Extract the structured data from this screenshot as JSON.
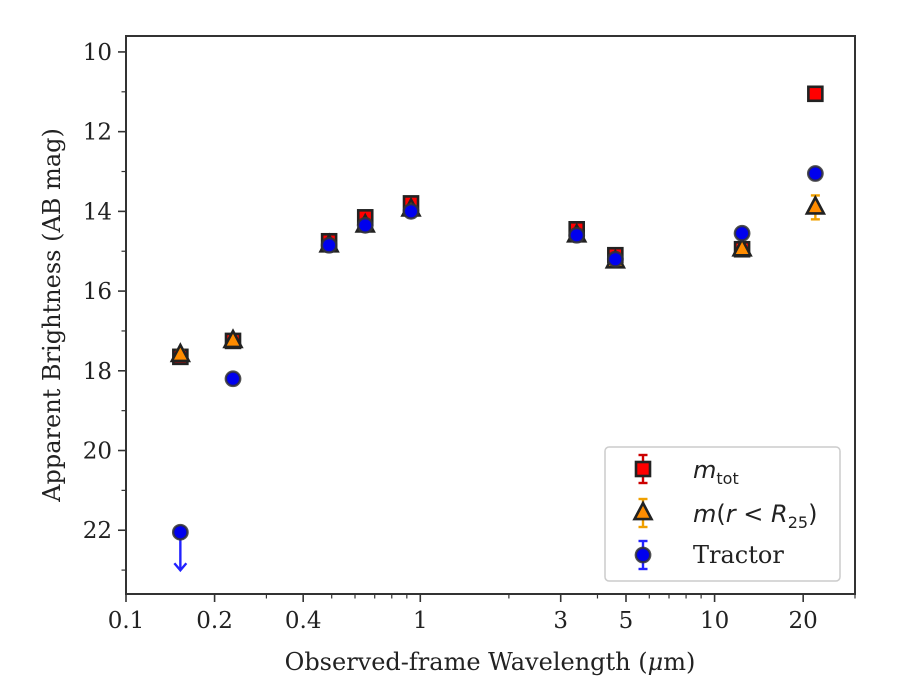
{
  "chart_data": {
    "type": "scatter",
    "xlabel_parts": [
      "Observed-frame Wavelength (",
      "μ",
      "m)"
    ],
    "ylabel": "Apparent Brightness (AB mag)",
    "x_scale": "log",
    "xlim": [
      0.1,
      30
    ],
    "ylim": [
      23.6,
      9.6
    ],
    "y_inverted": true,
    "grid": false,
    "legend_placement": "lower right",
    "x_ticks": [
      {
        "value": 0.1,
        "label": "0.1"
      },
      {
        "value": 0.2,
        "label": "0.2"
      },
      {
        "value": 0.4,
        "label": "0.4"
      },
      {
        "value": 1,
        "label": "1"
      },
      {
        "value": 3,
        "label": "3"
      },
      {
        "value": 5,
        "label": "5"
      },
      {
        "value": 10,
        "label": "10"
      },
      {
        "value": 20,
        "label": "20"
      }
    ],
    "x_minor_ticks": [
      0.3,
      0.5,
      0.6,
      0.7,
      0.8,
      0.9,
      2,
      4,
      6,
      7,
      8,
      9,
      30
    ],
    "y_ticks": [
      {
        "value": 10,
        "label": "10"
      },
      {
        "value": 12,
        "label": "12"
      },
      {
        "value": 14,
        "label": "14"
      },
      {
        "value": 16,
        "label": "16"
      },
      {
        "value": 18,
        "label": "18"
      },
      {
        "value": 20,
        "label": "20"
      },
      {
        "value": 22,
        "label": "22"
      }
    ],
    "y_minor_ticks": [
      11,
      13,
      15,
      17,
      19,
      21,
      23
    ],
    "series": [
      {
        "key": "mtot",
        "legend_label": "m_tot",
        "marker": "square",
        "face_color": "#ff0000",
        "edge_color": "#222222",
        "error_color": "#cc0000",
        "points": [
          {
            "x": 0.153,
            "y": 17.65,
            "err": 0.05
          },
          {
            "x": 0.231,
            "y": 17.25,
            "err": 0.05
          },
          {
            "x": 0.49,
            "y": 14.75,
            "err": 0.05
          },
          {
            "x": 0.65,
            "y": 14.15,
            "err": 0.05
          },
          {
            "x": 0.93,
            "y": 13.8,
            "err": 0.05
          },
          {
            "x": 3.4,
            "y": 14.45,
            "err": 0.05
          },
          {
            "x": 4.6,
            "y": 15.1,
            "err": 0.05
          },
          {
            "x": 12.4,
            "y": 14.95,
            "err": 0.05
          },
          {
            "x": 22.0,
            "y": 11.05,
            "err": 0.05
          }
        ]
      },
      {
        "key": "mr25",
        "legend_label": "m(r < R25)",
        "marker": "triangle",
        "face_color": "#ff8c00",
        "edge_color": "#222222",
        "error_color": "#f0a000",
        "points": [
          {
            "x": 0.153,
            "y": 17.6,
            "err": 0.05
          },
          {
            "x": 0.231,
            "y": 17.25,
            "err": 0.05
          },
          {
            "x": 0.49,
            "y": 14.85,
            "err": 0.05
          },
          {
            "x": 0.65,
            "y": 14.35,
            "err": 0.05
          },
          {
            "x": 0.93,
            "y": 13.95,
            "err": 0.05
          },
          {
            "x": 3.4,
            "y": 14.6,
            "err": 0.05
          },
          {
            "x": 4.6,
            "y": 15.25,
            "err": 0.05
          },
          {
            "x": 12.4,
            "y": 14.95,
            "err": 0.05
          },
          {
            "x": 22.0,
            "y": 13.9,
            "err": 0.3
          }
        ]
      },
      {
        "key": "tractor",
        "legend_label": "Tractor",
        "marker": "circle",
        "face_color": "#0000ee",
        "edge_color": "#333333",
        "error_color": "#2222ff",
        "points": [
          {
            "x": 0.153,
            "y": 22.05,
            "err": 0.05,
            "upper_limit": true
          },
          {
            "x": 0.231,
            "y": 18.2,
            "err": 0.05
          },
          {
            "x": 0.49,
            "y": 14.85,
            "err": 0.05
          },
          {
            "x": 0.65,
            "y": 14.35,
            "err": 0.05
          },
          {
            "x": 0.93,
            "y": 14.0,
            "err": 0.05
          },
          {
            "x": 3.4,
            "y": 14.6,
            "err": 0.05
          },
          {
            "x": 4.6,
            "y": 15.2,
            "err": 0.05
          },
          {
            "x": 12.4,
            "y": 14.55,
            "err": 0.05
          },
          {
            "x": 22.0,
            "y": 13.05,
            "err": 0.05
          }
        ]
      }
    ],
    "legend": {
      "mtot": {
        "base": "m",
        "sub": "tot"
      },
      "mr25": {
        "pre": "m",
        "mid": "(",
        "r": "r",
        "lt": " < ",
        "R": "R",
        "sub": "25",
        "post": ")"
      },
      "tractor": {
        "text": "Tractor"
      }
    }
  }
}
